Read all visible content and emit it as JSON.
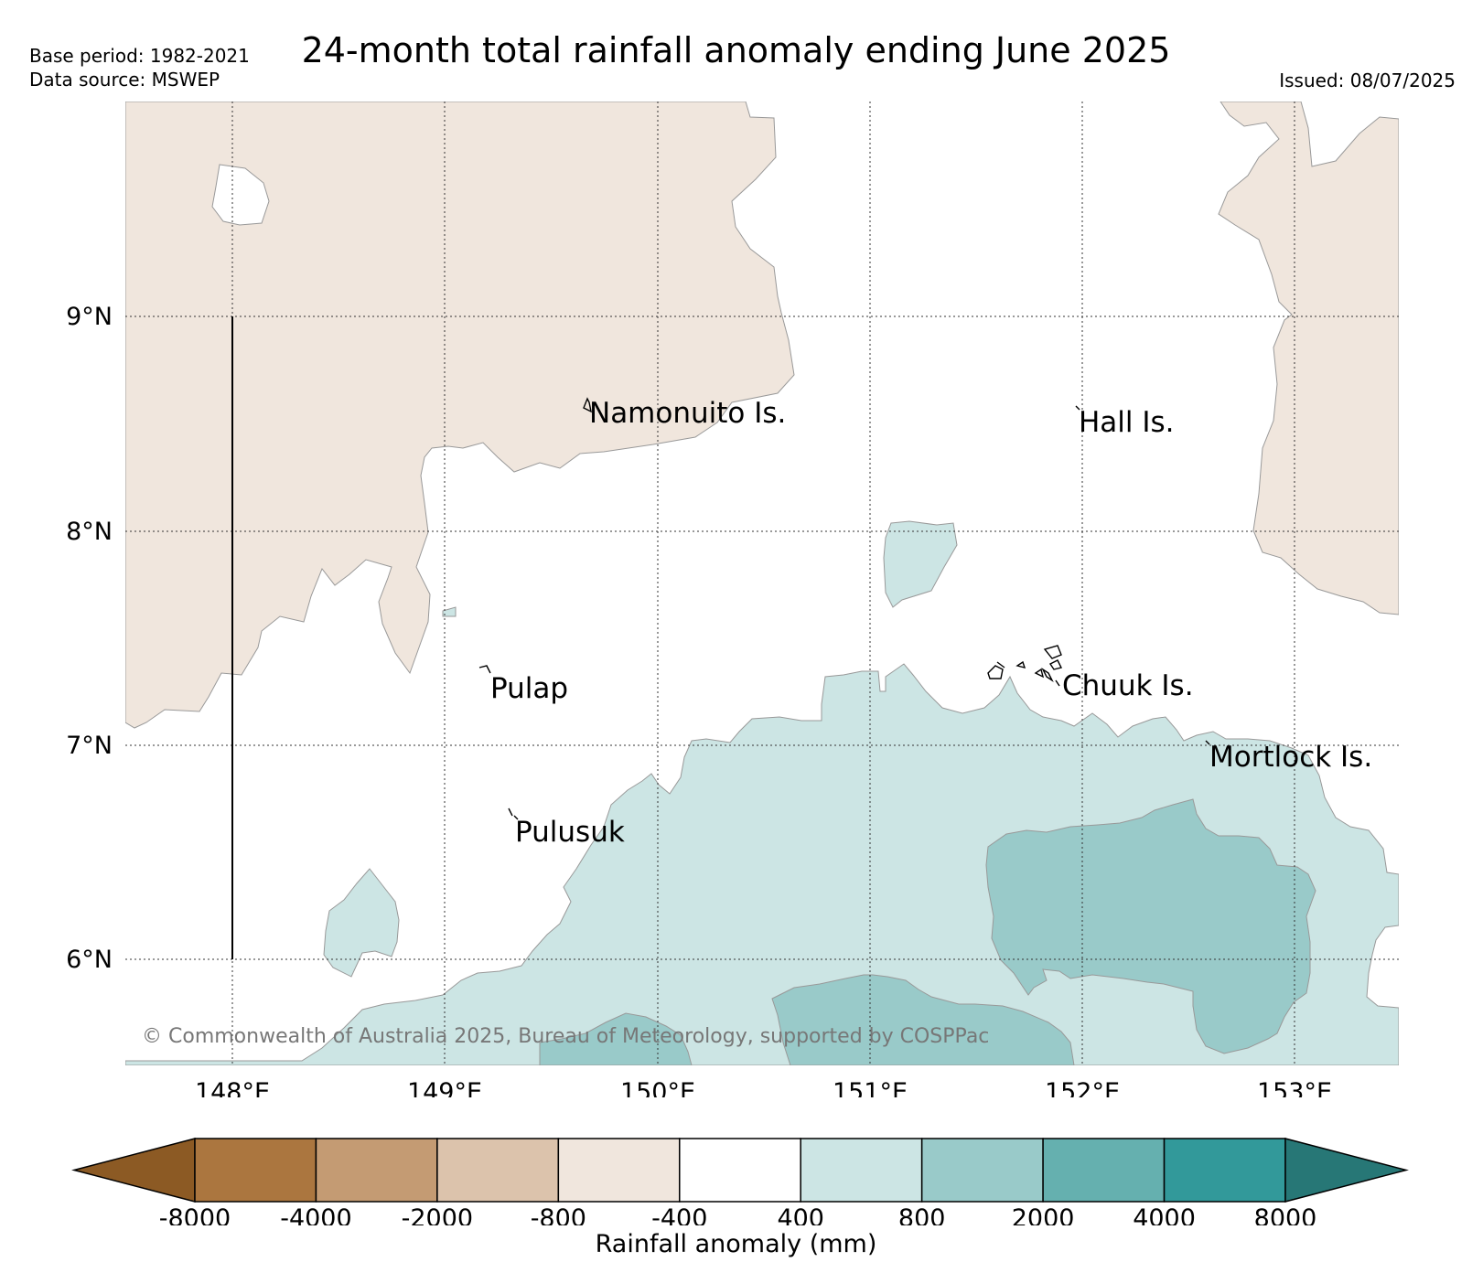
{
  "header": {
    "title": "24-month total rainfall anomaly ending June 2025",
    "base_period": "Base period: 1982-2021",
    "data_source": "Data source: MSWEP",
    "issued": "Issued: 08/07/2025"
  },
  "map": {
    "lon_labels": [
      "148°E",
      "149°E",
      "150°E",
      "151°E",
      "152°E",
      "153°E"
    ],
    "lat_labels": [
      "9°N",
      "8°N",
      "7°N",
      "6°N"
    ],
    "places": [
      {
        "name": "Namonuito Is.",
        "lon": 149.68,
        "lat": 8.57
      },
      {
        "name": "Hall Is.",
        "lon": 151.98,
        "lat": 8.53
      },
      {
        "name": "Pulap",
        "lon": 149.18,
        "lat": 7.33
      },
      {
        "name": "Chuuk Is.",
        "lon": 151.85,
        "lat": 7.3
      },
      {
        "name": "Mortlock Is.",
        "lon": 152.6,
        "lat": 6.97
      },
      {
        "name": "Pulusuk",
        "lon": 149.32,
        "lat": 6.68
      }
    ],
    "copyright": "© Commonwealth of Australia 2025, Bureau of Meteorology, supported by COSPPac"
  },
  "colorbar": {
    "label": "Rainfall anomaly (mm)",
    "tick_labels": [
      "-8000",
      "-4000",
      "-2000",
      "-800",
      "-400",
      "400",
      "800",
      "2000",
      "4000",
      "8000"
    ],
    "colors": [
      "#8c5a24",
      "#ab763f",
      "#c49b73",
      "#dcc3ac",
      "#f0e6dd",
      "#ffffff",
      "#cce5e4",
      "#99cac9",
      "#65b0af",
      "#32999a",
      "#277776"
    ]
  }
}
